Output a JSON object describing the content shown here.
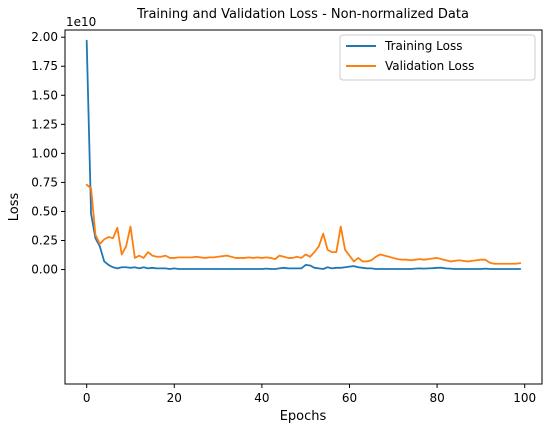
{
  "chart_data": {
    "type": "line",
    "title": "Training and Validation Loss - Non-normalized Data",
    "xlabel": "Epochs",
    "ylabel": "Loss",
    "y_scale_label": "1e10",
    "xlim": [
      -4.95,
      103.95
    ],
    "ylim": [
      -0.985,
      2.062
    ],
    "x_ticks": [
      0,
      20,
      40,
      60,
      80,
      100
    ],
    "x_tick_labels": [
      "0",
      "20",
      "40",
      "60",
      "80",
      "100"
    ],
    "y_ticks": [
      0.0,
      0.25,
      0.5,
      0.75,
      1.0,
      1.25,
      1.5,
      1.75,
      2.0
    ],
    "y_tick_labels": [
      "0.00",
      "0.25",
      "0.50",
      "0.75",
      "1.00",
      "1.25",
      "1.50",
      "1.75",
      "2.00"
    ],
    "legend_position": "top-right",
    "grid": false,
    "series": [
      {
        "name": "Training Loss",
        "color": "#1f77b4",
        "values": [
          1.97,
          0.48,
          0.27,
          0.2,
          0.07,
          0.04,
          0.02,
          0.01,
          0.02,
          0.02,
          0.015,
          0.02,
          0.01,
          0.02,
          0.01,
          0.015,
          0.01,
          0.01,
          0.01,
          0.005,
          0.01,
          0.005,
          0.005,
          0.005,
          0.005,
          0.005,
          0.005,
          0.005,
          0.005,
          0.005,
          0.005,
          0.005,
          0.005,
          0.005,
          0.005,
          0.005,
          0.005,
          0.005,
          0.005,
          0.005,
          0.005,
          0.008,
          0.005,
          0.005,
          0.01,
          0.015,
          0.01,
          0.01,
          0.01,
          0.01,
          0.04,
          0.035,
          0.015,
          0.01,
          0.005,
          0.02,
          0.01,
          0.015,
          0.015,
          0.02,
          0.025,
          0.03,
          0.02,
          0.015,
          0.01,
          0.01,
          0.005,
          0.005,
          0.005,
          0.005,
          0.005,
          0.005,
          0.005,
          0.005,
          0.005,
          0.008,
          0.01,
          0.008,
          0.01,
          0.012,
          0.015,
          0.015,
          0.01,
          0.008,
          0.005,
          0.005,
          0.005,
          0.005,
          0.005,
          0.005,
          0.005,
          0.008,
          0.005,
          0.005,
          0.005,
          0.005,
          0.005,
          0.005,
          0.005,
          0.005
        ]
      },
      {
        "name": "Validation Loss",
        "color": "#ff7f0e",
        "values": [
          0.73,
          0.7,
          0.3,
          0.22,
          0.26,
          0.28,
          0.27,
          0.36,
          0.13,
          0.2,
          0.37,
          0.1,
          0.12,
          0.1,
          0.15,
          0.12,
          0.11,
          0.11,
          0.12,
          0.1,
          0.1,
          0.105,
          0.105,
          0.105,
          0.105,
          0.11,
          0.105,
          0.1,
          0.105,
          0.105,
          0.11,
          0.115,
          0.12,
          0.11,
          0.1,
          0.1,
          0.1,
          0.105,
          0.1,
          0.105,
          0.1,
          0.105,
          0.1,
          0.09,
          0.12,
          0.11,
          0.1,
          0.1,
          0.11,
          0.1,
          0.13,
          0.11,
          0.15,
          0.2,
          0.31,
          0.17,
          0.15,
          0.15,
          0.37,
          0.17,
          0.12,
          0.07,
          0.1,
          0.07,
          0.07,
          0.08,
          0.11,
          0.13,
          0.12,
          0.11,
          0.1,
          0.09,
          0.085,
          0.085,
          0.08,
          0.085,
          0.09,
          0.085,
          0.09,
          0.095,
          0.1,
          0.09,
          0.08,
          0.07,
          0.075,
          0.08,
          0.075,
          0.07,
          0.075,
          0.08,
          0.085,
          0.085,
          0.06,
          0.05,
          0.05,
          0.05,
          0.05,
          0.05,
          0.05,
          0.055
        ]
      }
    ]
  }
}
